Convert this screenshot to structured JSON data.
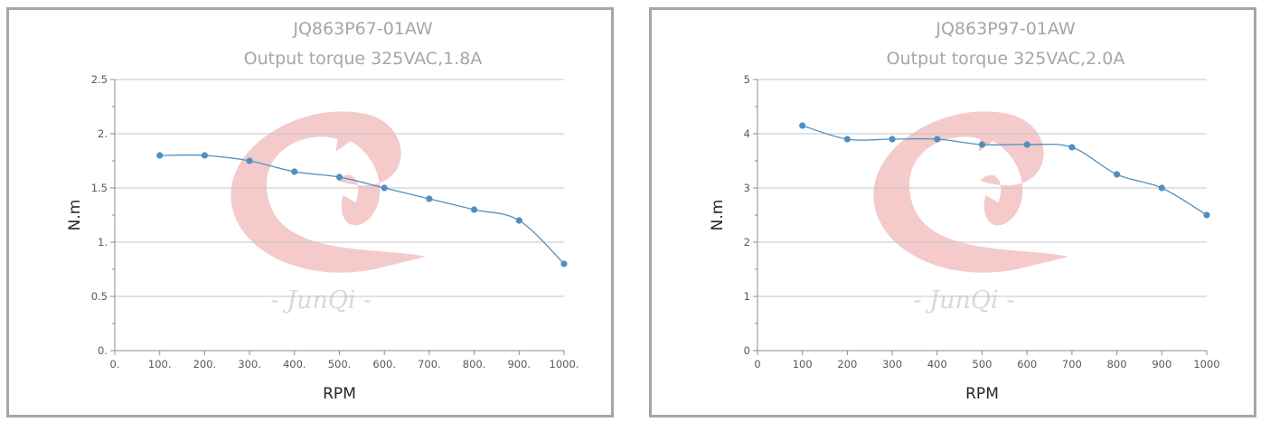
{
  "chart_data": [
    {
      "type": "line",
      "title": "JQ863P67-01AW",
      "subtitle": "Output torque 325VAC,1.8A",
      "xlabel": "RPM",
      "ylabel": "N.m",
      "x_tick_labels": [
        "0.",
        "100.",
        "200.",
        "300.",
        "400.",
        "500.",
        "600.",
        "700.",
        "800.",
        "900.",
        "1000."
      ],
      "y_tick_labels": [
        "0.",
        "0.5",
        "1.",
        "1.5",
        "2.",
        "2.5"
      ],
      "xlim": [
        0,
        1000
      ],
      "ylim": [
        0,
        2.5
      ],
      "grid": true,
      "watermark": "- JunQi -",
      "series": [
        {
          "x": [
            100,
            200,
            300,
            400,
            500,
            600,
            700,
            800,
            900,
            1000
          ],
          "y": [
            1.8,
            1.8,
            1.75,
            1.65,
            1.6,
            1.5,
            1.4,
            1.3,
            1.2,
            0.8
          ],
          "color": "#4f8fc0"
        }
      ]
    },
    {
      "type": "line",
      "title": "JQ863P97-01AW",
      "subtitle": "Output torque 325VAC,2.0A",
      "xlabel": "RPM",
      "ylabel": "N.m",
      "x_tick_labels": [
        "0",
        "100",
        "200",
        "300",
        "400",
        "500",
        "600",
        "700",
        "800",
        "900",
        "1000"
      ],
      "y_tick_labels": [
        "0",
        "1",
        "2",
        "3",
        "4",
        "5"
      ],
      "xlim": [
        0,
        1000
      ],
      "ylim": [
        0,
        5
      ],
      "grid": true,
      "watermark": "- JunQi -",
      "series": [
        {
          "x": [
            100,
            200,
            300,
            400,
            500,
            600,
            700,
            800,
            900,
            1000
          ],
          "y": [
            4.15,
            3.9,
            3.9,
            3.9,
            3.8,
            3.8,
            3.75,
            3.25,
            3.0,
            2.5
          ],
          "color": "#4f8fc0"
        }
      ]
    }
  ]
}
